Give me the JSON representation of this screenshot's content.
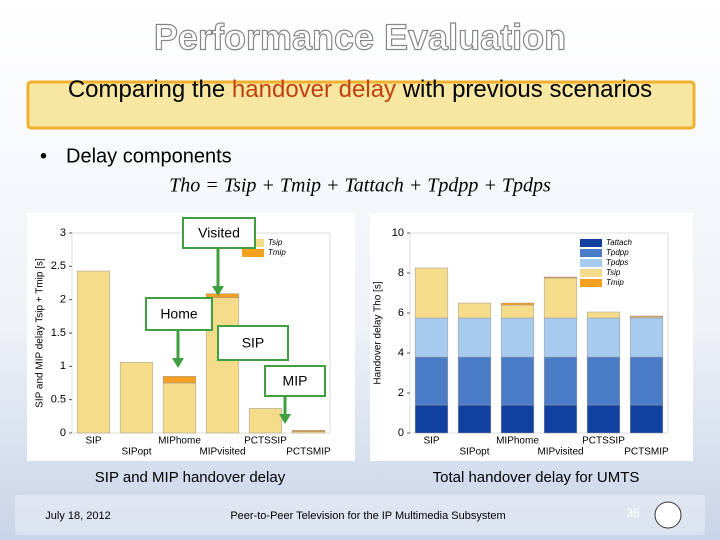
{
  "slide": {
    "title": "Performance Evaluation",
    "subtitle_parts": [
      "Comparing the ",
      "handover delay",
      " with previous scenarios"
    ],
    "bullet": "Delay components",
    "formula": "Tho = Tsip + Tmip + Tattach + Tpdpp + Tpdps",
    "annotations": [
      "Visited",
      "Home",
      "SIP",
      "MIP"
    ],
    "footer_date": "July 18, 2012",
    "footer_text": "Peer-to-Peer Television for the IP Multimedia Subsystem",
    "page_number": "35"
  },
  "chart_data": [
    {
      "type": "bar",
      "stacked": true,
      "caption": "SIP and MIP handover delay",
      "ylabel": "SIP and MIP delay Tsip + Tmip [s]",
      "categories": [
        "SIP",
        "SIPopt",
        "MIPhome",
        "MIPvisited",
        "PCTSSIP",
        "PCTSMIP"
      ],
      "ylim": [
        0,
        3
      ],
      "yticks": [
        0,
        0.5,
        1,
        1.5,
        2,
        2.5,
        3
      ],
      "series": [
        {
          "name": "Tsip",
          "color": "#f5dc8a",
          "values": [
            2.43,
            1.06,
            0.75,
            2.03,
            0.37,
            0.02
          ]
        },
        {
          "name": "Tmip",
          "color": "#f5a020",
          "values": [
            0,
            0,
            0.1,
            0.06,
            0,
            0.02
          ]
        }
      ]
    },
    {
      "type": "bar",
      "stacked": true,
      "caption": "Total handover delay for UMTS",
      "ylabel": "Handover delay Tho [s]",
      "categories": [
        "SIP",
        "SIPopt",
        "MIPhome",
        "MIPvisited",
        "PCTSSIP",
        "PCTSMIP"
      ],
      "ylim": [
        0,
        10
      ],
      "yticks": [
        0,
        2,
        4,
        6,
        8,
        10
      ],
      "series": [
        {
          "name": "Tattach",
          "color": "#1040a0",
          "values": [
            1.4,
            1.4,
            1.4,
            1.4,
            1.4,
            1.4
          ]
        },
        {
          "name": "Tpdpp",
          "color": "#4a7cc8",
          "values": [
            2.4,
            2.4,
            2.4,
            2.4,
            2.4,
            2.4
          ]
        },
        {
          "name": "Tpdps",
          "color": "#a8ccf0",
          "values": [
            1.95,
            1.95,
            1.95,
            1.95,
            1.95,
            1.95
          ]
        },
        {
          "name": "Tsip",
          "color": "#f5dc8a",
          "values": [
            2.5,
            0.75,
            0.65,
            2.0,
            0.3,
            0.05
          ]
        },
        {
          "name": "Tmip",
          "color": "#f5a020",
          "values": [
            0,
            0,
            0.1,
            0.05,
            0,
            0.05
          ]
        }
      ]
    }
  ]
}
